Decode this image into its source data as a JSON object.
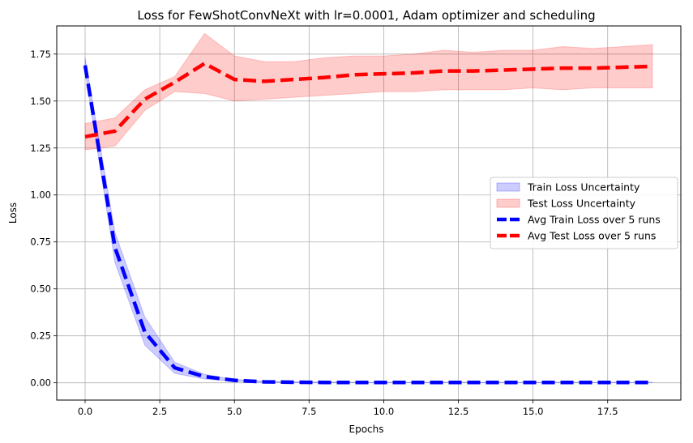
{
  "chart_data": {
    "type": "line",
    "title": "Loss for FewShotConvNeXt with lr=0.0001, Adam optimizer and scheduling",
    "xlabel": "Epochs",
    "ylabel": "Loss",
    "xlim": [
      -0.95,
      19.95
    ],
    "ylim": [
      -0.092,
      1.9
    ],
    "xticks": [
      0.0,
      2.5,
      5.0,
      7.5,
      10.0,
      12.5,
      15.0,
      17.5
    ],
    "xtick_labels": [
      "0.0",
      "2.5",
      "5.0",
      "7.5",
      "10.0",
      "12.5",
      "15.0",
      "17.5"
    ],
    "yticks": [
      0.0,
      0.25,
      0.5,
      0.75,
      1.0,
      1.25,
      1.5,
      1.75
    ],
    "ytick_labels": [
      "0.00",
      "0.25",
      "0.50",
      "0.75",
      "1.00",
      "1.25",
      "1.50",
      "1.75"
    ],
    "grid": true,
    "legend_position": "center-right",
    "x": [
      0,
      1,
      2,
      3,
      4,
      5,
      6,
      7,
      8,
      9,
      10,
      11,
      12,
      13,
      14,
      15,
      16,
      17,
      18,
      19
    ],
    "bands": [
      {
        "name": "Train Loss Uncertainty",
        "color": "#0000ff",
        "lower": [
          1.66,
          0.64,
          0.2,
          0.05,
          0.02,
          0.008,
          0.003,
          0.002,
          0.001,
          0.001,
          0.001,
          0.001,
          0.001,
          0.001,
          0.001,
          0.001,
          0.001,
          0.001,
          0.001,
          0.001
        ],
        "upper": [
          1.73,
          0.8,
          0.35,
          0.11,
          0.045,
          0.018,
          0.008,
          0.005,
          0.004,
          0.003,
          0.003,
          0.003,
          0.003,
          0.003,
          0.003,
          0.003,
          0.003,
          0.003,
          0.003,
          0.003
        ]
      },
      {
        "name": "Test Loss Uncertainty",
        "color": "#ff0000",
        "lower": [
          1.24,
          1.26,
          1.45,
          1.55,
          1.54,
          1.5,
          1.51,
          1.52,
          1.53,
          1.54,
          1.55,
          1.55,
          1.56,
          1.56,
          1.56,
          1.57,
          1.56,
          1.57,
          1.57,
          1.57
        ],
        "upper": [
          1.38,
          1.41,
          1.56,
          1.63,
          1.86,
          1.74,
          1.71,
          1.71,
          1.73,
          1.74,
          1.74,
          1.75,
          1.77,
          1.76,
          1.77,
          1.77,
          1.79,
          1.78,
          1.79,
          1.8
        ]
      }
    ],
    "series": [
      {
        "name": "Avg Train Loss over 5 runs",
        "color": "#0000ff",
        "values": [
          1.69,
          0.72,
          0.27,
          0.08,
          0.033,
          0.013,
          0.005,
          0.003,
          0.002,
          0.002,
          0.002,
          0.002,
          0.002,
          0.002,
          0.002,
          0.002,
          0.002,
          0.002,
          0.002,
          0.002
        ]
      },
      {
        "name": "Avg Test Loss over 5 runs",
        "color": "#ff0000",
        "values": [
          1.31,
          1.34,
          1.51,
          1.6,
          1.7,
          1.615,
          1.605,
          1.615,
          1.625,
          1.64,
          1.645,
          1.65,
          1.66,
          1.66,
          1.665,
          1.67,
          1.675,
          1.675,
          1.68,
          1.685
        ]
      }
    ]
  }
}
